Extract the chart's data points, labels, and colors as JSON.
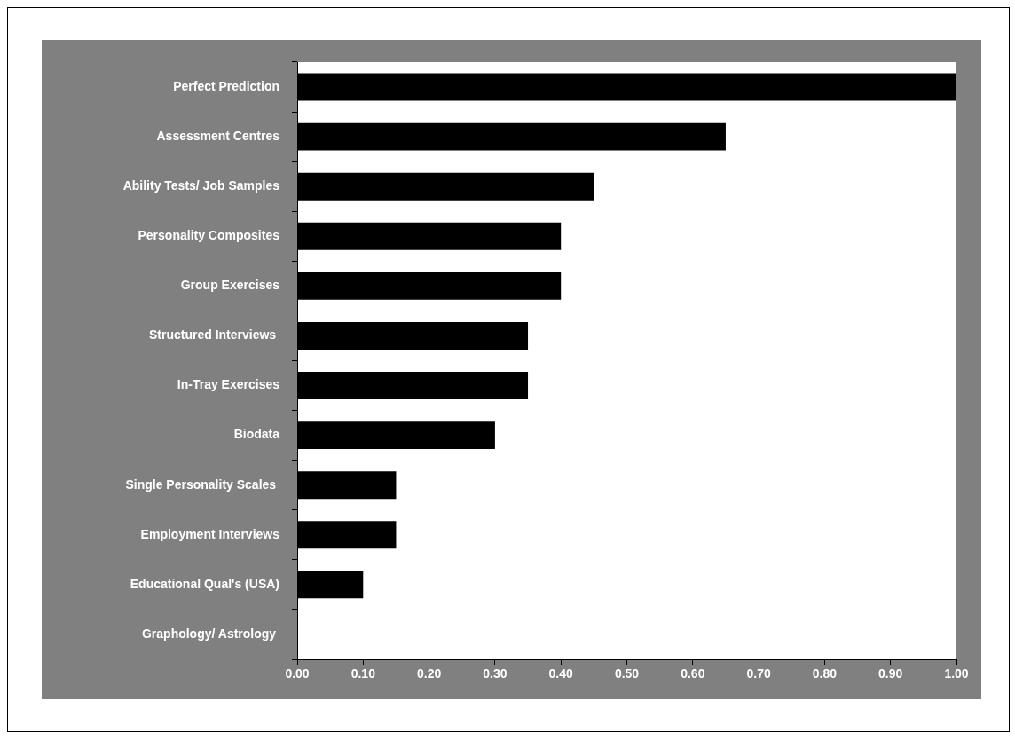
{
  "chart_data": {
    "type": "bar",
    "orientation": "horizontal",
    "categories": [
      "Perfect Prediction",
      "Assessment Centres",
      "Ability Tests/ Job Samples",
      "Personality Composites",
      "Group Exercises",
      "Structured Interviews ",
      "In-Tray Exercises",
      "Biodata",
      "Single Personality Scales ",
      "Employment Interviews",
      "Educational Qual's (USA)",
      "Graphology/ Astrology "
    ],
    "values": [
      1.0,
      0.65,
      0.45,
      0.4,
      0.4,
      0.35,
      0.35,
      0.3,
      0.15,
      0.15,
      0.1,
      0
    ],
    "color": "#000000",
    "xlim": [
      0,
      1
    ],
    "xticks": [
      {
        "value": 0,
        "label": "0.00"
      },
      {
        "value": 0.1,
        "label": "0.10"
      },
      {
        "value": 0.2,
        "label": "0.20"
      },
      {
        "value": 0.3,
        "label": "0.30"
      },
      {
        "value": 0.4,
        "label": "0.40"
      },
      {
        "value": 0.5,
        "label": "0.50"
      },
      {
        "value": 0.6,
        "label": "0.60"
      },
      {
        "value": 0.7,
        "label": "0.70"
      },
      {
        "value": 0.8,
        "label": "0.80"
      },
      {
        "value": 0.9,
        "label": "0.90"
      },
      {
        "value": 1,
        "label": "1.00"
      }
    ],
    "grid": false,
    "legend": false
  }
}
